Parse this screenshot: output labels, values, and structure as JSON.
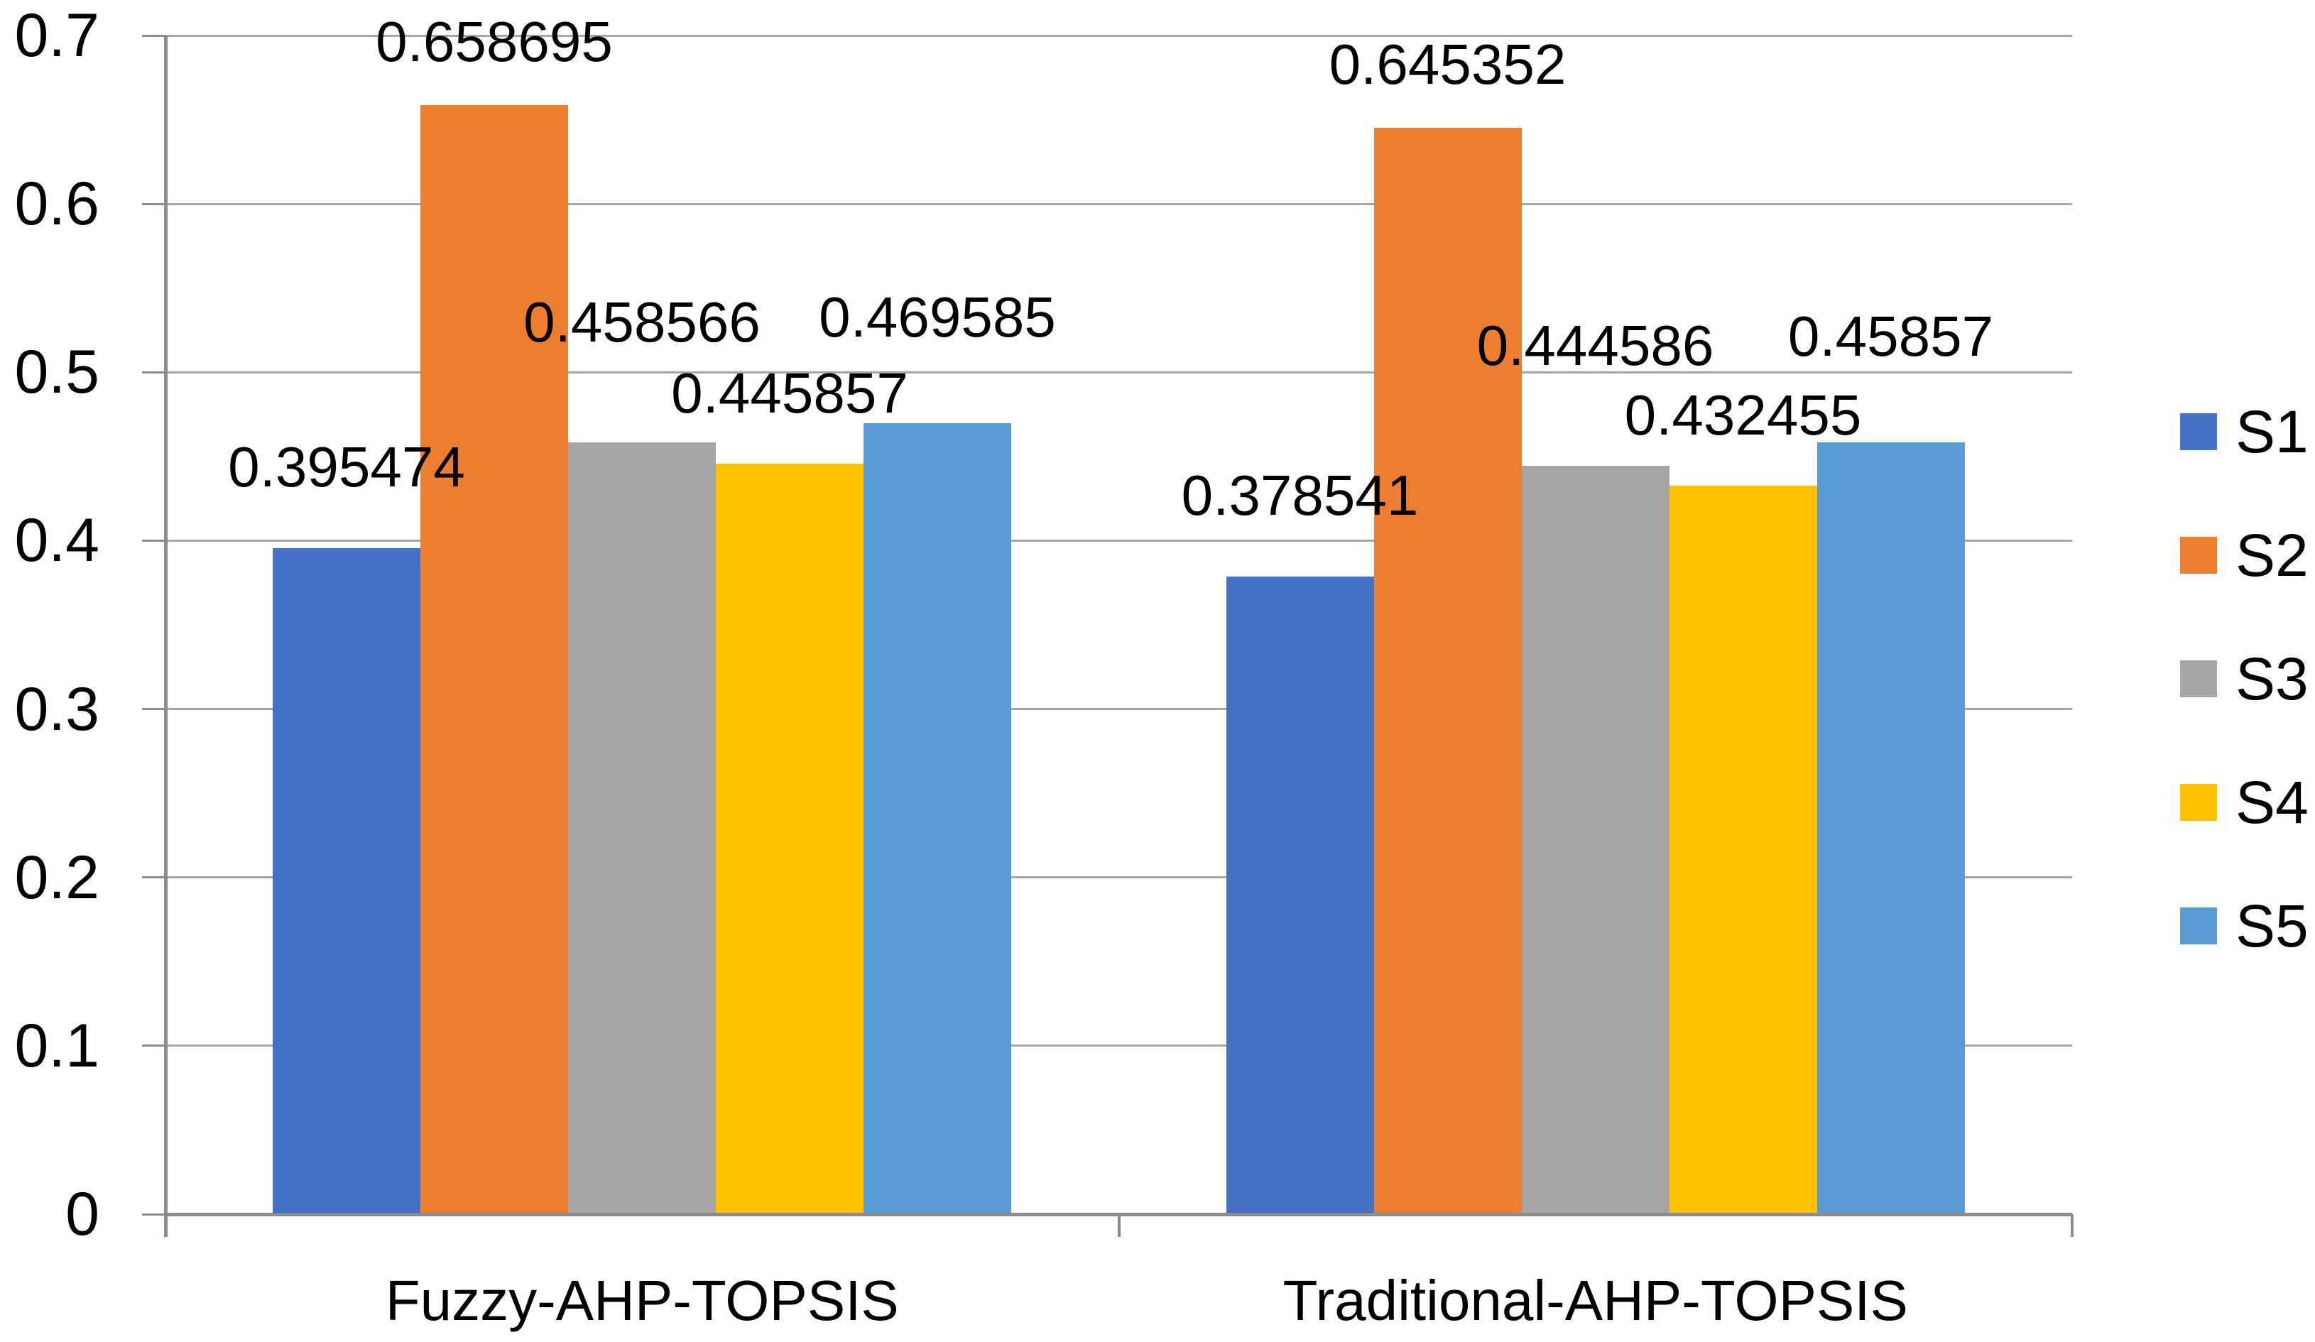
{
  "chart_data": {
    "type": "bar",
    "title": "",
    "xlabel": "",
    "ylabel": "",
    "categories": [
      "Fuzzy-AHP-TOPSIS",
      "Traditional-AHP-TOPSIS"
    ],
    "series": [
      {
        "name": "S1",
        "color": "#4472C4",
        "values": [
          0.395474,
          0.378541
        ],
        "labels": [
          "0.395474",
          "0.378541"
        ]
      },
      {
        "name": "S2",
        "color": "#ED7D31",
        "values": [
          0.658695,
          0.645352
        ],
        "labels": [
          "0.658695",
          "0.645352"
        ]
      },
      {
        "name": "S3",
        "color": "#A5A5A5",
        "values": [
          0.458566,
          0.444586
        ],
        "labels": [
          "0.458566",
          "0.444586"
        ]
      },
      {
        "name": "S4",
        "color": "#FFC000",
        "values": [
          0.445857,
          0.432455
        ],
        "labels": [
          "0.445857",
          "0.432455"
        ]
      },
      {
        "name": "S5",
        "color": "#5B9BD5",
        "values": [
          0.469585,
          0.45857
        ],
        "labels": [
          "0.469585",
          "0.45857"
        ]
      }
    ],
    "ylim": [
      0,
      0.7
    ],
    "yticks": [
      "0",
      "0.1",
      "0.2",
      "0.3",
      "0.4",
      "0.5",
      "0.6",
      "0.7"
    ],
    "grid": true,
    "legend_position": "right",
    "value_labels_position": "outside-end"
  },
  "colors": {
    "background": "#FFFFFF",
    "gridline": "#A6A6A6",
    "axis": "#8C8C8C",
    "text": "#000000"
  }
}
